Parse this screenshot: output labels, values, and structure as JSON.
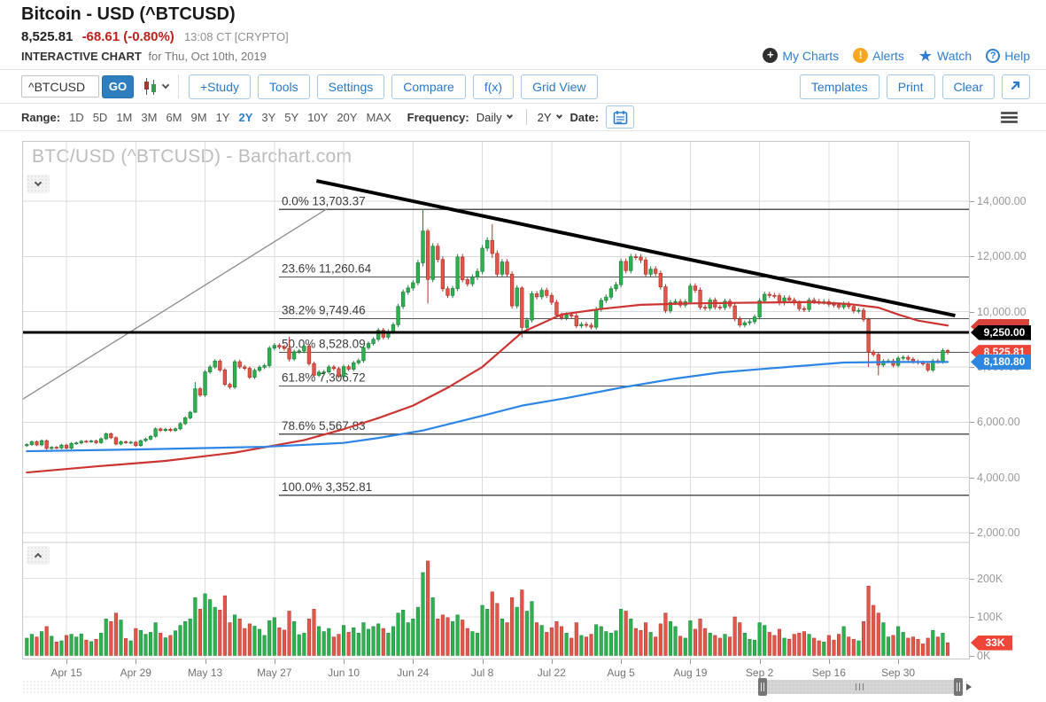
{
  "header": {
    "title": "Bitcoin - USD (^BTCUSD)",
    "last_price": "8,525.81",
    "change": "-68.61 (-0.80%)",
    "timestamp": "13:08 CT [CRYPTO]",
    "section_label": "INTERACTIVE CHART",
    "section_date": "for Thu, Oct 10th, 2019",
    "links": [
      {
        "label": "My Charts",
        "icon": "plus-circle-icon"
      },
      {
        "label": "Alerts",
        "icon": "alert-icon"
      },
      {
        "label": "Watch",
        "icon": "star-icon"
      },
      {
        "label": "Help",
        "icon": "help-icon"
      }
    ]
  },
  "toolbar": {
    "symbol_value": "^BTCUSD",
    "go_label": "GO",
    "buttons_left": [
      "+Study",
      "Tools",
      "Settings",
      "Compare",
      "f(x)",
      "Grid View"
    ],
    "buttons_right": [
      "Templates",
      "Print",
      "Clear"
    ]
  },
  "range_bar": {
    "range_label": "Range:",
    "options": [
      "1D",
      "5D",
      "1M",
      "3M",
      "6M",
      "9M",
      "1Y",
      "2Y",
      "3Y",
      "5Y",
      "10Y",
      "20Y",
      "MAX"
    ],
    "selected": "2Y",
    "frequency_label": "Frequency:",
    "frequency_value": "Daily",
    "aggregation_value": "2Y",
    "date_label": "Date:"
  },
  "chart_data": {
    "type": "candlestick",
    "watermark": "BTC/USD (^BTCUSD) - Barchart.com",
    "symbol": "^BTCUSD",
    "frequency": "Daily",
    "start_date": "2019-04-07",
    "first_open": 5150,
    "candles_format": "[close, volumeK, highOverride?, lowOverride?] ; open = previous close",
    "candles": [
      [
        5190,
        45
      ],
      [
        5290,
        55
      ],
      [
        5180,
        48
      ],
      [
        5330,
        62
      ],
      [
        5050,
        75
      ],
      [
        5090,
        50
      ],
      [
        5070,
        35
      ],
      [
        5170,
        38
      ],
      [
        5060,
        52
      ],
      [
        5230,
        55
      ],
      [
        5250,
        48
      ],
      [
        5310,
        56
      ],
      [
        5300,
        40
      ],
      [
        5320,
        36
      ],
      [
        5260,
        42
      ],
      [
        5400,
        58
      ],
      [
        5580,
        95
      ],
      [
        5440,
        88
      ],
      [
        5210,
        110
      ],
      [
        5290,
        92
      ],
      [
        5265,
        44
      ],
      [
        5275,
        38
      ],
      [
        5155,
        70
      ],
      [
        5330,
        65
      ],
      [
        5390,
        55
      ],
      [
        5490,
        60
      ],
      [
        5760,
        85
      ],
      [
        5700,
        58
      ],
      [
        5745,
        46
      ],
      [
        5700,
        52
      ],
      [
        5760,
        64
      ],
      [
        5950,
        78
      ],
      [
        6160,
        88
      ],
      [
        6360,
        95
      ],
      [
        7210,
        150,
        7450,
        6340
      ],
      [
        6980,
        120
      ],
      [
        7820,
        160
      ],
      [
        8000,
        145
      ],
      [
        8210,
        125
      ],
      [
        7890,
        118
      ],
      [
        7370,
        155
      ],
      [
        7270,
        85
      ],
      [
        8190,
        105
      ],
      [
        8000,
        95
      ],
      [
        7950,
        70
      ],
      [
        7630,
        82
      ],
      [
        7880,
        76
      ],
      [
        7990,
        68
      ],
      [
        8050,
        52
      ],
      [
        8680,
        90
      ],
      [
        8780,
        98
      ],
      [
        8720,
        72
      ],
      [
        8670,
        66
      ],
      [
        8290,
        115,
        9100,
        8200
      ],
      [
        8550,
        88
      ],
      [
        8580,
        54
      ],
      [
        8750,
        58
      ],
      [
        8120,
        95
      ],
      [
        7700,
        120
      ],
      [
        7810,
        75
      ],
      [
        7820,
        62
      ],
      [
        8000,
        70
      ],
      [
        7940,
        48
      ],
      [
        7660,
        55
      ],
      [
        8010,
        78
      ],
      [
        7920,
        60
      ],
      [
        8150,
        72
      ],
      [
        8230,
        58
      ],
      [
        8700,
        85
      ],
      [
        8850,
        68
      ],
      [
        9000,
        75
      ],
      [
        9330,
        82
      ],
      [
        9080,
        70
      ],
      [
        9280,
        58
      ],
      [
        9530,
        75
      ],
      [
        10190,
        110
      ],
      [
        10710,
        118
      ],
      [
        10860,
        85
      ],
      [
        11050,
        95
      ],
      [
        11770,
        125
      ],
      [
        12920,
        215,
        13703,
        11640
      ],
      [
        11170,
        245,
        13000,
        10300
      ],
      [
        12370,
        150
      ],
      [
        11890,
        95
      ],
      [
        10830,
        105
      ],
      [
        10590,
        98
      ],
      [
        10840,
        88
      ],
      [
        11980,
        105
      ],
      [
        11160,
        92
      ],
      [
        11010,
        70
      ],
      [
        11250,
        62
      ],
      [
        11460,
        58
      ],
      [
        12300,
        130
      ],
      [
        12580,
        120
      ],
      [
        12110,
        165,
        13170,
        11950
      ],
      [
        11360,
        135
      ],
      [
        11800,
        95
      ],
      [
        11360,
        85
      ],
      [
        10210,
        150
      ],
      [
        10860,
        125
      ],
      [
        9430,
        170,
        10920,
        9070
      ],
      [
        9700,
        115
      ],
      [
        10650,
        140
      ],
      [
        10540,
        85
      ],
      [
        10770,
        78
      ],
      [
        10590,
        60
      ],
      [
        10340,
        72
      ],
      [
        9880,
        88
      ],
      [
        9780,
        75
      ],
      [
        9890,
        58
      ],
      [
        9850,
        45
      ],
      [
        9490,
        85
      ],
      [
        9540,
        52
      ],
      [
        9510,
        48
      ],
      [
        9440,
        55
      ],
      [
        10090,
        80
      ],
      [
        10410,
        75
      ],
      [
        10530,
        62
      ],
      [
        10830,
        58
      ],
      [
        10980,
        64
      ],
      [
        11820,
        120
      ],
      [
        11490,
        115
      ],
      [
        11990,
        95
      ],
      [
        11980,
        70
      ],
      [
        11870,
        65
      ],
      [
        11360,
        85
      ],
      [
        11540,
        60
      ],
      [
        11390,
        48
      ],
      [
        10900,
        82
      ],
      [
        10040,
        110
      ],
      [
        10330,
        88
      ],
      [
        10370,
        75
      ],
      [
        10240,
        50
      ],
      [
        10360,
        45
      ],
      [
        10930,
        90
      ],
      [
        10780,
        68
      ],
      [
        10160,
        95
      ],
      [
        10130,
        70
      ],
      [
        10420,
        58
      ],
      [
        10170,
        52
      ],
      [
        10150,
        45
      ],
      [
        10380,
        55
      ],
      [
        10210,
        48
      ],
      [
        9740,
        100
      ],
      [
        9520,
        85
      ],
      [
        9600,
        58
      ],
      [
        9640,
        42
      ],
      [
        9810,
        40
      ],
      [
        10400,
        85
      ],
      [
        10630,
        78
      ],
      [
        10590,
        60
      ],
      [
        10580,
        52
      ],
      [
        10320,
        68
      ],
      [
        10500,
        45
      ],
      [
        10420,
        42
      ],
      [
        10320,
        55
      ],
      [
        10110,
        58
      ],
      [
        10080,
        62
      ],
      [
        10420,
        55
      ],
      [
        10370,
        45
      ],
      [
        10350,
        38
      ],
      [
        10360,
        35
      ],
      [
        10270,
        52
      ],
      [
        10250,
        40
      ],
      [
        10170,
        55
      ],
      [
        10280,
        75
      ],
      [
        10190,
        48
      ],
      [
        10030,
        42
      ],
      [
        10050,
        38
      ],
      [
        9720,
        88
      ],
      [
        8540,
        180,
        9780,
        7998
      ],
      [
        8450,
        130
      ],
      [
        8070,
        110,
        8510,
        7700
      ],
      [
        8210,
        85
      ],
      [
        8220,
        48
      ],
      [
        8060,
        52
      ],
      [
        8320,
        75
      ],
      [
        8350,
        60
      ],
      [
        8280,
        45
      ],
      [
        8190,
        48
      ],
      [
        8160,
        42
      ],
      [
        8110,
        30
      ],
      [
        7890,
        45
      ],
      [
        8220,
        65
      ],
      [
        8190,
        48
      ],
      [
        8594,
        58
      ],
      [
        8526,
        33,
        8646,
        8452
      ]
    ],
    "x_ticks": [
      {
        "i": 8,
        "label": "Apr 15"
      },
      {
        "i": 22,
        "label": "Apr 29"
      },
      {
        "i": 36,
        "label": "May 13"
      },
      {
        "i": 50,
        "label": "May 27"
      },
      {
        "i": 64,
        "label": "Jun 10"
      },
      {
        "i": 78,
        "label": "Jun 24"
      },
      {
        "i": 92,
        "label": "Jul 8"
      },
      {
        "i": 106,
        "label": "Jul 22"
      },
      {
        "i": 120,
        "label": "Aug 5"
      },
      {
        "i": 134,
        "label": "Aug 19"
      },
      {
        "i": 148,
        "label": "Sep 2"
      },
      {
        "i": 162,
        "label": "Sep 16"
      },
      {
        "i": 176,
        "label": "Sep 30"
      }
    ],
    "price_axis": {
      "labels": [
        "14,000.00",
        "12,000.00",
        "10,000.00",
        "8,000.00",
        "6,000.00",
        "4,000.00",
        "2,000.00"
      ],
      "values": [
        14000,
        12000,
        10000,
        8000,
        6000,
        4000,
        2000
      ]
    },
    "volume_axis": {
      "labels": [
        "200K",
        "100K",
        "0K"
      ],
      "values": [
        200,
        100,
        0
      ]
    },
    "fib_levels": [
      {
        "label": "0.0% 13,703.37",
        "price": 13703.37
      },
      {
        "label": "23.6% 11,260.64",
        "price": 11260.64
      },
      {
        "label": "38.2% 9,749.46",
        "price": 9749.46
      },
      {
        "label": "50.0% 8,528.09",
        "price": 8528.09
      },
      {
        "label": "61.8% 7,306.72",
        "price": 7306.72
      },
      {
        "label": "78.6% 5,567.83",
        "price": 5567.83
      },
      {
        "label": "100.0% 3,352.81",
        "price": 3352.81
      }
    ],
    "overlays": {
      "ma_red": {
        "color": "#cc3531",
        "points": [
          [
            0,
            4180
          ],
          [
            14,
            4400
          ],
          [
            28,
            4600
          ],
          [
            42,
            4900
          ],
          [
            56,
            5350
          ],
          [
            64,
            5750
          ],
          [
            71,
            6150
          ],
          [
            78,
            6600
          ],
          [
            85,
            7250
          ],
          [
            92,
            8000
          ],
          [
            100,
            9250
          ],
          [
            108,
            9900
          ],
          [
            116,
            10100
          ],
          [
            124,
            10250
          ],
          [
            134,
            10300
          ],
          [
            148,
            10330
          ],
          [
            158,
            10350
          ],
          [
            166,
            10280
          ],
          [
            172,
            10150
          ],
          [
            176,
            9900
          ],
          [
            180,
            9680
          ],
          [
            186,
            9500
          ]
        ]
      },
      "ma_blue": {
        "color": "#2d86e5",
        "points": [
          [
            0,
            4950
          ],
          [
            24,
            5020
          ],
          [
            48,
            5110
          ],
          [
            64,
            5250
          ],
          [
            71,
            5430
          ],
          [
            80,
            5700
          ],
          [
            92,
            6235
          ],
          [
            100,
            6600
          ],
          [
            109,
            6875
          ],
          [
            120,
            7250
          ],
          [
            131,
            7580
          ],
          [
            140,
            7800
          ],
          [
            149,
            7935
          ],
          [
            158,
            8060
          ],
          [
            165,
            8160
          ],
          [
            176,
            8180
          ],
          [
            186,
            8181
          ]
        ]
      },
      "trend_down": {
        "color": "#000000",
        "width": 4,
        "from": [
          58.5,
          14738
        ],
        "to": [
          187.5,
          9860
        ]
      },
      "trend_gray": {
        "color": "#8a8a8a",
        "width": 1.3,
        "from": [
          -1,
          6813
        ],
        "to": [
          60.5,
          13712
        ]
      },
      "hline": {
        "color": "#000000",
        "width": 3.2,
        "price": 9250
      }
    },
    "tags": [
      {
        "label": "",
        "price": 9460,
        "color": "#d8423a",
        "width": 66,
        "name": "red-ma-tag-hidden"
      },
      {
        "label": "9,250.00",
        "price": 9250,
        "color": "#000000",
        "width": 68,
        "name": "hline-price-tag"
      },
      {
        "label": "8,525.81",
        "price": 8526,
        "color": "#ef4438",
        "width": 68,
        "name": "last-price-tag"
      },
      {
        "label": "8,180.80",
        "price": 8181,
        "color": "#2d87e0",
        "width": 68,
        "name": "blue-ma-tag"
      },
      {
        "label": "33K",
        "volume": 33,
        "color": "#ef4438",
        "width": 47,
        "name": "volume-tag"
      }
    ]
  }
}
